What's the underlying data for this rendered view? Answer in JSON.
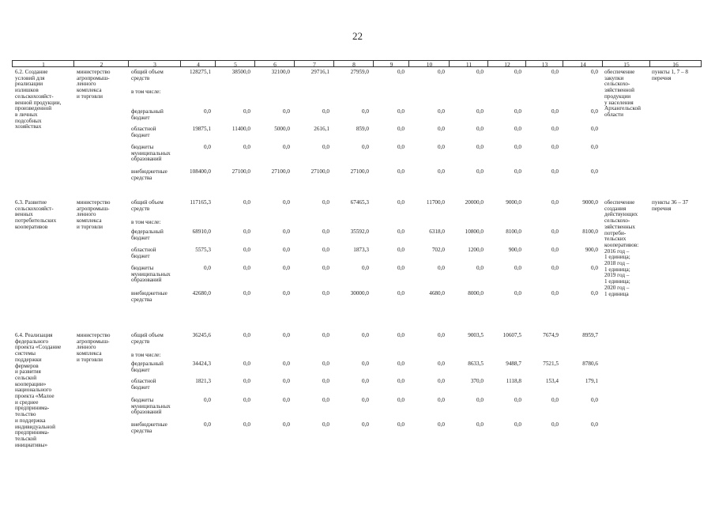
{
  "page_number": "22",
  "table": {
    "header": [
      "1",
      "2",
      "3",
      "4",
      "5",
      "6",
      "7",
      "8",
      "9",
      "10",
      "11",
      "12",
      "13",
      "14",
      "15",
      "16"
    ],
    "sections": [
      {
        "item": "6.2. Создание\nусловий для\nреализации\nизлишков\nсельскохозяйст-\nвенной продукции,\nпроизведенной\nв личных\nподсобных\nхозяйствах",
        "executor": "министерство\nагропромыш-\nленного\nкомплекса\nи торговли",
        "rows": [
          {
            "source": "общий объем\nсредств",
            "values": [
              "128275,1",
              "38500,0",
              "32100,0",
              "29716,1",
              "27959,0",
              "0,0",
              "0,0",
              "0,0",
              "0,0",
              "0,0",
              "0,0"
            ]
          },
          {
            "source": "в том числе:"
          },
          {
            "source": "федеральный\nбюджет",
            "values": [
              "0,0",
              "0,0",
              "0,0",
              "0,0",
              "0,0",
              "0,0",
              "0,0",
              "0,0",
              "0,0",
              "0,0",
              "0,0"
            ]
          },
          {
            "source": "областной\nбюджет",
            "values": [
              "19875,1",
              "11400,0",
              "5000,0",
              "2616,1",
              "859,0",
              "0,0",
              "0,0",
              "0,0",
              "0,0",
              "0,0",
              "0,0"
            ]
          },
          {
            "source": "бюджеты\nмуниципальных\nобразований",
            "values": [
              "0,0",
              "0,0",
              "0,0",
              "0,0",
              "0,0",
              "0,0",
              "0,0",
              "0,0",
              "0,0",
              "0,0",
              "0,0"
            ]
          },
          {
            "source": "внебюджетные\nсредства",
            "values": [
              "108400,0",
              "27100,0",
              "27100,0",
              "27100,0",
              "27100,0",
              "0,0",
              "0,0",
              "0,0",
              "0,0",
              "0,0",
              "0,0"
            ]
          }
        ],
        "result": "обеспечение\nзакупки\nсельскохо-\nзяйственной\nпродукции\nу населения\nАрхангельской\nобласти",
        "reference": "пункты 1, 7 – 8\nперечня"
      },
      {
        "item": "6.3. Развитие\nсельскохозяйст-\nвенных\nпотребительских\nкооперативов",
        "executor": "министерство\nагропромыш-\nленного\nкомплекса\nи торговли",
        "rows": [
          {
            "source": "общий объем\nсредств",
            "values": [
              "117165,3",
              "0,0",
              "0,0",
              "0,0",
              "67465,3",
              "0,0",
              "11700,0",
              "20000,0",
              "9000,0",
              "0,0",
              "9000,0"
            ]
          },
          {
            "source": "в том числе:"
          },
          {
            "source": "федеральный\nбюджет",
            "values": [
              "68910,0",
              "0,0",
              "0,0",
              "0,0",
              "35592,0",
              "0,0",
              "6318,0",
              "10800,0",
              "8100,0",
              "0,0",
              "8100,0"
            ]
          },
          {
            "source": "областной\nбюджет",
            "values": [
              "5575,3",
              "0,0",
              "0,0",
              "0,0",
              "1873,3",
              "0,0",
              "702,0",
              "1200,0",
              "900,0",
              "0,0",
              "900,0"
            ]
          },
          {
            "source": "бюджеты\nмуниципальных\nобразований",
            "values": [
              "0,0",
              "0,0",
              "0,0",
              "0,0",
              "0,0",
              "0,0",
              "0,0",
              "0,0",
              "0,0",
              "0,0",
              "0,0"
            ]
          },
          {
            "source": "внебюджетные\nсредства",
            "values": [
              "42680,0",
              "0,0",
              "0,0",
              "0,0",
              "30000,0",
              "0,0",
              "4680,0",
              "8000,0",
              "0,0",
              "0,0",
              "0,0"
            ]
          }
        ],
        "result": "обеспечение\nсоздания\nдействующих\nсельскохо-\nзяйственных\nпотреби-\nтельских\nкооперативов:\n2016 год –\n1 единица;\n2018 год –\n1 единица;\n2019 год –\n1 единица;\n2020 год –\n1 единица",
        "reference": "пункты 36 – 37\nперечня"
      },
      {
        "item": "6.4. Реализация\nфедерального\nпроекта «Создание\nсистемы\nподдержки\nфермеров\nи развития\nсельской\nкооперации»\nнационального\nпроекта «Малое\nи среднее\nпредпринима-\nтельство\nи поддержка\nиндивидуальной\nпредпринима-\nтельской\nинициативы»",
        "executor": "министерство\nагропромыш-\nленного\nкомплекса\nи торговли",
        "rows": [
          {
            "source": "общий объем\nсредств",
            "values": [
              "36245,6",
              "0,0",
              "0,0",
              "0,0",
              "0,0",
              "0,0",
              "0,0",
              "9003,5",
              "10607,5",
              "7674,9",
              "8959,7"
            ]
          },
          {
            "source": "в том числе:"
          },
          {
            "source": "федеральный\nбюджет",
            "values": [
              "34424,3",
              "0,0",
              "0,0",
              "0,0",
              "0,0",
              "0,0",
              "0,0",
              "8633,5",
              "9488,7",
              "7521,5",
              "8780,6"
            ]
          },
          {
            "source": "областной\nбюджет",
            "values": [
              "1821,3",
              "0,0",
              "0,0",
              "0,0",
              "0,0",
              "0,0",
              "0,0",
              "370,0",
              "1118,8",
              "153,4",
              "179,1"
            ]
          },
          {
            "source": "бюджеты\nмуниципальных\nобразований",
            "values": [
              "0,0",
              "0,0",
              "0,0",
              "0,0",
              "0,0",
              "0,0",
              "0,0",
              "0,0",
              "0,0",
              "0,0",
              "0,0"
            ]
          },
          {
            "source": "внебюджетные\nсредства",
            "values": [
              "0,0",
              "0,0",
              "0,0",
              "0,0",
              "0,0",
              "0,0",
              "0,0",
              "0,0",
              "0,0",
              "0,0",
              "0,0"
            ]
          }
        ]
      }
    ]
  }
}
